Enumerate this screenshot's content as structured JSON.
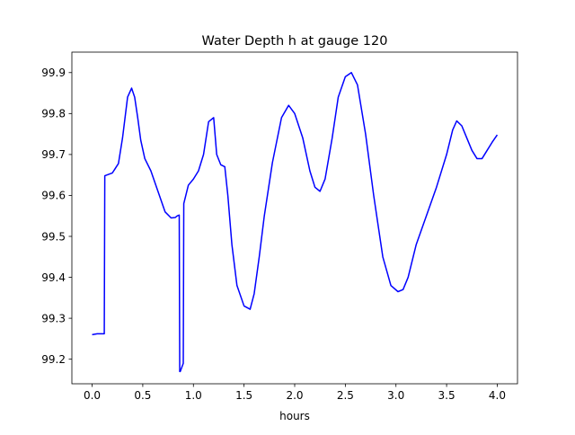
{
  "chart_data": {
    "type": "line",
    "title": "Water Depth h at gauge 120",
    "xlabel": "hours",
    "ylabel": "",
    "xlim": [
      -0.2,
      4.2
    ],
    "ylim": [
      99.14,
      99.95
    ],
    "xticks": [
      0.0,
      0.5,
      1.0,
      1.5,
      2.0,
      2.5,
      3.0,
      3.5,
      4.0
    ],
    "xtick_labels": [
      "0.0",
      "0.5",
      "1.0",
      "1.5",
      "2.0",
      "2.5",
      "3.0",
      "3.5",
      "4.0"
    ],
    "yticks": [
      99.2,
      99.3,
      99.4,
      99.5,
      99.6,
      99.7,
      99.8,
      99.9
    ],
    "ytick_labels": [
      "99.2",
      "99.3",
      "99.4",
      "99.5",
      "99.6",
      "99.7",
      "99.8",
      "99.9"
    ],
    "grid": false,
    "line_color": "#0000ff",
    "series": [
      {
        "x": [
          0.0,
          0.05,
          0.12,
          0.125,
          0.2,
          0.26,
          0.3,
          0.35,
          0.39,
          0.42,
          0.45,
          0.48,
          0.52,
          0.58,
          0.65,
          0.72,
          0.78,
          0.82,
          0.84,
          0.86,
          0.865,
          0.87,
          0.9,
          0.905,
          0.95,
          1.0,
          1.05,
          1.1,
          1.15,
          1.2,
          1.23,
          1.27,
          1.31,
          1.34,
          1.38,
          1.43,
          1.5,
          1.56,
          1.6,
          1.65,
          1.7,
          1.78,
          1.87,
          1.94,
          2.0,
          2.08,
          2.15,
          2.2,
          2.25,
          2.3,
          2.37,
          2.43,
          2.5,
          2.56,
          2.62,
          2.7,
          2.78,
          2.87,
          2.95,
          3.02,
          3.07,
          3.12,
          3.2,
          3.3,
          3.4,
          3.5,
          3.56,
          3.6,
          3.65,
          3.7,
          3.75,
          3.8,
          3.85,
          3.9,
          3.95,
          4.0
        ],
        "y": [
          99.26,
          99.262,
          99.262,
          99.648,
          99.655,
          99.678,
          99.74,
          99.84,
          99.862,
          99.84,
          99.79,
          99.735,
          99.69,
          99.66,
          99.61,
          99.56,
          99.545,
          99.546,
          99.55,
          99.552,
          99.17,
          99.17,
          99.19,
          99.58,
          99.625,
          99.64,
          99.66,
          99.7,
          99.78,
          99.79,
          99.7,
          99.675,
          99.67,
          99.6,
          99.48,
          99.38,
          99.33,
          99.322,
          99.36,
          99.45,
          99.55,
          99.68,
          99.79,
          99.82,
          99.8,
          99.74,
          99.66,
          99.62,
          99.61,
          99.64,
          99.74,
          99.84,
          99.89,
          99.9,
          99.87,
          99.75,
          99.6,
          99.45,
          99.38,
          99.365,
          99.37,
          99.4,
          99.48,
          99.55,
          99.62,
          99.7,
          99.76,
          99.782,
          99.77,
          99.74,
          99.71,
          99.69,
          99.69,
          99.71,
          99.73,
          99.748
        ]
      }
    ]
  }
}
